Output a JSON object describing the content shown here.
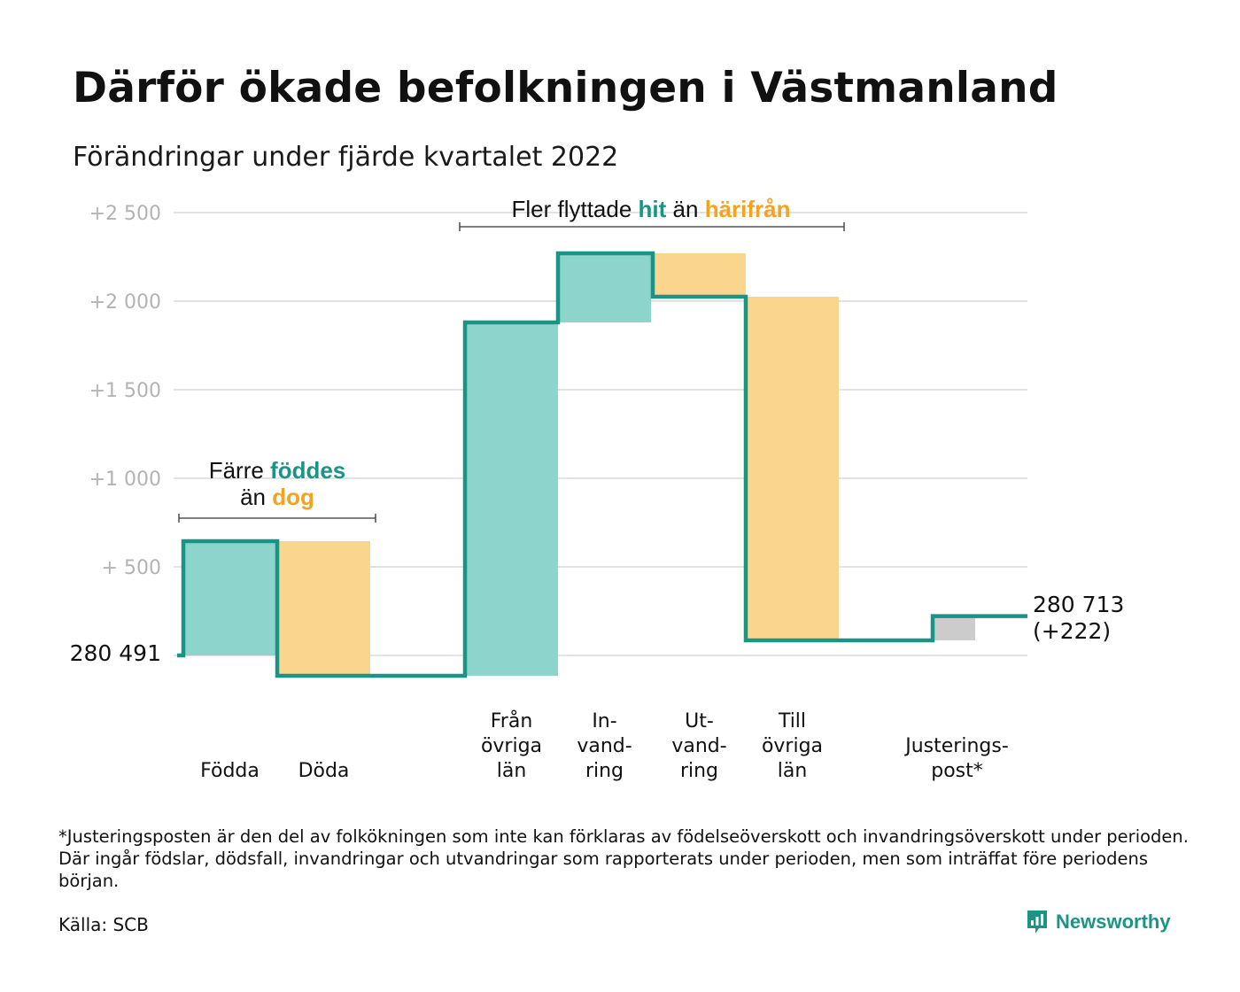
{
  "title": "Därför ökade befolkningen i Västmanland",
  "subtitle": "Förändringar under fjärde kvartalet 2022",
  "colors": {
    "inflow": "#8dd5cc",
    "outflow": "#fad58e",
    "adjustment": "#cccccc",
    "line": "#1a9485",
    "grid": "#e3e3e3",
    "tick": "#b3b3b3",
    "highlight_in": "#1a9485",
    "highlight_out": "#f3a321"
  },
  "chart_data": {
    "type": "waterfall",
    "title": "Därför ökade befolkningen i Västmanland",
    "subtitle": "Förändringar under fjärde kvartalet 2022",
    "start_label": "280 491",
    "start_value": 280491,
    "end_label_lines": [
      "280 713",
      "(+222)"
    ],
    "end_value": 280713,
    "net_change": 222,
    "y_ticks": [
      {
        "value": 500,
        "label": "+ 500"
      },
      {
        "value": 1000,
        "label": "+1 000"
      },
      {
        "value": 1500,
        "label": "+1 500"
      },
      {
        "value": 2000,
        "label": "+2 000"
      },
      {
        "value": 2500,
        "label": "+2 500"
      }
    ],
    "ylim": [
      -150,
      2550
    ],
    "grid": true,
    "steps": [
      {
        "label_lines": [
          "Födda"
        ],
        "kind": "inflow",
        "change": 645
      },
      {
        "label_lines": [
          "Döda"
        ],
        "kind": "outflow",
        "change": -760
      },
      {
        "label_lines": [
          "Från",
          "övriga",
          "län"
        ],
        "kind": "inflow",
        "change": 1995
      },
      {
        "label_lines": [
          "In-",
          "vand-",
          "ring"
        ],
        "kind": "inflow",
        "change": 390
      },
      {
        "label_lines": [
          "Ut-",
          "vand-",
          "ring"
        ],
        "kind": "outflow",
        "change": -245
      },
      {
        "label_lines": [
          "Till",
          "övriga",
          "län"
        ],
        "kind": "outflow",
        "change": -1940
      },
      {
        "label_lines": [
          "Justerings-",
          "post*"
        ],
        "kind": "adjustment",
        "change": 137
      }
    ],
    "annotations": [
      {
        "lines": [
          [
            "Färre ",
            "föddes",
            ""
          ],
          [
            "än ",
            "dog",
            ""
          ]
        ]
      },
      {
        "lines": [
          [
            "Fler flyttade ",
            "hit",
            " än "
          ],
          [
            "",
            "härifrån",
            ""
          ]
        ]
      }
    ]
  },
  "annotation_text": {
    "birth_prefix": "Färre ",
    "birth_in": "föddes",
    "birth_mid": "än ",
    "birth_out": "dog",
    "move_prefix": "Fler flyttade ",
    "move_in": "hit",
    "move_mid": " än ",
    "move_out": "härifrån"
  },
  "footnote": "*Justeringsposten är den del av folkökningen som inte kan förklaras av födelseöverskott och invandringsöverskott under perioden. Där ingår födslar, dödsfall, invandringar och utvandringar som rapporterats under perioden, men som inträffat före periodens början.",
  "source": "Källa: SCB",
  "brand": {
    "name": "Newsworthy",
    "icon": "newsworthy-logo-icon"
  }
}
